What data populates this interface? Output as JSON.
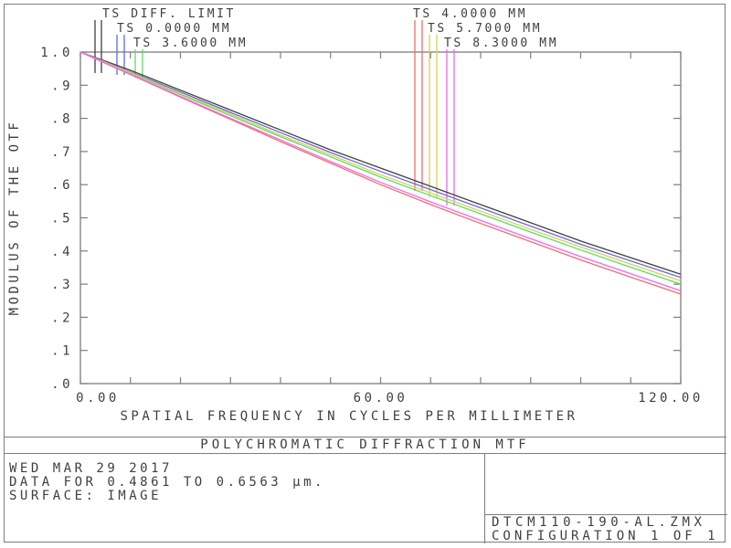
{
  "window": {
    "background": "#ffffff",
    "frame_color": "#7d7d7d",
    "text_color": "#3f3f3f"
  },
  "chart_data": {
    "type": "line",
    "title": "POLYCHROMATIC DIFFRACTION MTF",
    "xlabel": "SPATIAL FREQUENCY IN CYCLES PER MILLIMETER",
    "ylabel": "MODULUS OF THE OTF",
    "xlim": [
      0,
      120
    ],
    "ylim": [
      0.0,
      1.0
    ],
    "grid": false,
    "legend_position": "top",
    "x_minor_tick_step": 10,
    "x_tick_labels": [
      {
        "value": 0,
        "label": "0.00"
      },
      {
        "value": 60,
        "label": "60.00"
      },
      {
        "value": 120,
        "label": "120.00"
      }
    ],
    "y_tick_labels": [
      {
        "value": 1.0,
        "label": "1.0"
      },
      {
        "value": 0.9,
        "label": ".9"
      },
      {
        "value": 0.8,
        "label": ".8"
      },
      {
        "value": 0.7,
        "label": ".7"
      },
      {
        "value": 0.6,
        "label": ".6"
      },
      {
        "value": 0.5,
        "label": ".5"
      },
      {
        "value": 0.4,
        "label": ".4"
      },
      {
        "value": 0.3,
        "label": ".3"
      },
      {
        "value": 0.2,
        "label": ".2"
      },
      {
        "value": 0.1,
        "label": ".1"
      },
      {
        "value": 0.0,
        "label": ".0"
      }
    ],
    "x": [
      0,
      10,
      20,
      30,
      40,
      50,
      60,
      70,
      80,
      90,
      100,
      110,
      120
    ],
    "series": [
      {
        "name": "TS DIFF. LIMIT",
        "color": "#404040",
        "values": [
          1.0,
          0.945,
          0.885,
          0.825,
          0.765,
          0.705,
          0.65,
          0.595,
          0.54,
          0.485,
          0.43,
          0.38,
          0.33
        ]
      },
      {
        "name": "TS 0.0000 MM",
        "color": "#6767ec",
        "values": [
          1.0,
          0.94,
          0.88,
          0.818,
          0.757,
          0.697,
          0.64,
          0.585,
          0.53,
          0.475,
          0.42,
          0.37,
          0.32
        ]
      },
      {
        "name": "TS 3.6000 MM",
        "color": "#62d862",
        "values": [
          1.0,
          0.936,
          0.872,
          0.808,
          0.745,
          0.684,
          0.623,
          0.567,
          0.512,
          0.457,
          0.403,
          0.351,
          0.3
        ]
      },
      {
        "name": "TS 4.0000 MM",
        "color": "#f26d6d",
        "values": [
          1.0,
          0.932,
          0.864,
          0.797,
          0.73,
          0.665,
          0.6,
          0.54,
          0.483,
          0.428,
          0.373,
          0.321,
          0.27
        ]
      },
      {
        "name": "TS 5.7000 MM",
        "color": "#d2d24e",
        "values": [
          1.0,
          0.938,
          0.875,
          0.813,
          0.75,
          0.69,
          0.63,
          0.575,
          0.52,
          0.465,
          0.412,
          0.36,
          0.31
        ]
      },
      {
        "name": "TS 8.3000 MM",
        "color": "#f266f2",
        "values": [
          1.0,
          0.933,
          0.866,
          0.8,
          0.735,
          0.67,
          0.607,
          0.548,
          0.492,
          0.437,
          0.383,
          0.331,
          0.28
        ]
      }
    ],
    "legend_columns": {
      "left": [
        "TS DIFF. LIMIT",
        "TS 0.0000 MM",
        "TS 3.6000 MM"
      ],
      "right": [
        "TS 4.0000 MM",
        "TS 5.7000 MM",
        "TS 8.3000 MM"
      ]
    }
  },
  "footer": {
    "date": "WED MAR 29 2017",
    "data_range": "DATA FOR 0.4861 TO 0.6563 µm.",
    "surface": "SURFACE: IMAGE",
    "file_name": "DTCM110-190-AL.ZMX",
    "configuration": "CONFIGURATION 1 OF 1"
  }
}
